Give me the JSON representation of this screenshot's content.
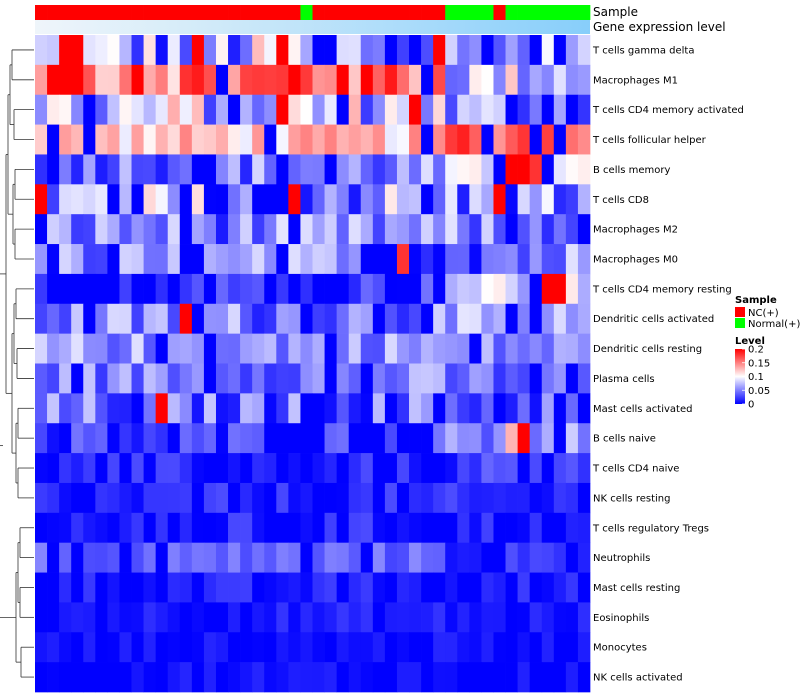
{
  "chart_data": {
    "type": "heatmap",
    "title": "",
    "rows": [
      "T cells gamma delta",
      "Macrophages M1",
      "T cells CD4 memory activated",
      "T cells follicular helper",
      "B cells memory",
      "T cells CD8",
      "Macrophages M2",
      "Macrophages M0",
      "T cells CD4 memory resting",
      "Dendritic cells activated",
      "Dendritic cells resting",
      "Plasma cells",
      "Mast cells activated",
      "B cells naive",
      "T cells CD4 naive",
      "NK cells resting",
      "T cells regulatory  Tregs",
      "Neutrophils",
      "Mast cells resting",
      "Eosinophils",
      "Monocytes",
      "NK cells activated"
    ],
    "n_columns": 46,
    "sample_groups": [
      "NC",
      "NC",
      "NC",
      "NC",
      "NC",
      "NC",
      "NC",
      "NC",
      "NC",
      "NC",
      "NC",
      "NC",
      "NC",
      "NC",
      "NC",
      "NC",
      "NC",
      "NC",
      "NC",
      "NC",
      "NC",
      "NC",
      "Normal",
      "NC",
      "NC",
      "NC",
      "NC",
      "NC",
      "NC",
      "NC",
      "NC",
      "NC",
      "NC",
      "NC",
      "Normal",
      "Normal",
      "Normal",
      "Normal",
      "NC",
      "Normal",
      "Normal",
      "Normal",
      "Normal",
      "Normal",
      "Normal",
      "Normal"
    ],
    "annotations": {
      "sample_label": "Sample",
      "gene_label": "Gene expression level"
    },
    "gene_bar_split": 10,
    "colors": {
      "NC": "#FF0000",
      "Normal": "#00FF00",
      "gene_left": "#EFF5FA",
      "gene_right": "#87CEFA",
      "scale_low": "#0000FF",
      "scale_mid": "#FFFFFF",
      "scale_high": "#FF0000",
      "dendro": "#333333"
    },
    "value_range": [
      0,
      0.2
    ],
    "legend": {
      "sample_title": "Sample",
      "sample_items": [
        {
          "key": "NC",
          "label": "NC(+)"
        },
        {
          "key": "Normal",
          "label": "Normal(+)"
        }
      ],
      "level_title": "Level",
      "level_ticks": [
        "0.2",
        "0.15",
        "0.1",
        "0.05",
        "0"
      ],
      "level_tick_values": [
        0.2,
        0.15,
        0.1,
        0.05,
        0
      ]
    },
    "row_base": [
      0.06,
      0.16,
      0.08,
      0.12,
      0.05,
      0.06,
      0.05,
      0.04,
      0.02,
      0.05,
      0.06,
      0.05,
      0.04,
      0.02,
      0.01,
      0.01,
      0.01,
      0.04,
      0.01,
      0.01,
      0.005,
      0.005
    ],
    "row_noise": [
      0.07,
      0.05,
      0.06,
      0.03,
      0.04,
      0.06,
      0.04,
      0.05,
      0.03,
      0.04,
      0.03,
      0.03,
      0.04,
      0.03,
      0.02,
      0.02,
      0.02,
      0.015,
      0.015,
      0.012,
      0.01,
      0.012
    ],
    "right_shift": [
      -0.02,
      -0.08,
      -0.03,
      0.05,
      0.02,
      -0.01,
      0.0,
      0.01,
      0.06,
      0.0,
      -0.01,
      -0.01,
      0.0,
      0.04,
      0.01,
      0.0,
      0.0,
      -0.02,
      0.0,
      0.0,
      0.0,
      0.0
    ],
    "special_cells": [
      {
        "row": 1,
        "col": 2,
        "value": 0.2
      },
      {
        "row": 1,
        "col": 3,
        "value": 0.2
      },
      {
        "row": 1,
        "col": 8,
        "value": 0.2
      },
      {
        "row": 1,
        "col": 21,
        "value": 0.2
      },
      {
        "row": 1,
        "col": 25,
        "value": 0.2
      },
      {
        "row": 2,
        "col": 20,
        "value": 0.2
      },
      {
        "row": 2,
        "col": 31,
        "value": 0.2
      },
      {
        "row": 0,
        "col": 2,
        "value": 0.2
      },
      {
        "row": 0,
        "col": 3,
        "value": 0.2
      },
      {
        "row": 0,
        "col": 13,
        "value": 0.2
      },
      {
        "row": 0,
        "col": 20,
        "value": 0.2
      },
      {
        "row": 0,
        "col": 33,
        "value": 0.2
      },
      {
        "row": 4,
        "col": 39,
        "value": 0.2
      },
      {
        "row": 5,
        "col": 0,
        "value": 0.2
      },
      {
        "row": 5,
        "col": 21,
        "value": 0.2
      },
      {
        "row": 5,
        "col": 38,
        "value": 0.2
      },
      {
        "row": 8,
        "col": 42,
        "value": 0.2
      },
      {
        "row": 8,
        "col": 43,
        "value": 0.2
      },
      {
        "row": 9,
        "col": 12,
        "value": 0.2
      },
      {
        "row": 13,
        "col": 40,
        "value": 0.2
      },
      {
        "row": 12,
        "col": 10,
        "value": 0.2
      },
      {
        "row": 4,
        "col": 40,
        "value": 0.2
      },
      {
        "row": 4,
        "col": 41,
        "value": 0.18
      },
      {
        "row": 7,
        "col": 30,
        "value": 0.18
      },
      {
        "row": 4,
        "col": 38,
        "value": 0
      },
      {
        "row": 13,
        "col": 39,
        "value": 0.13
      }
    ]
  }
}
